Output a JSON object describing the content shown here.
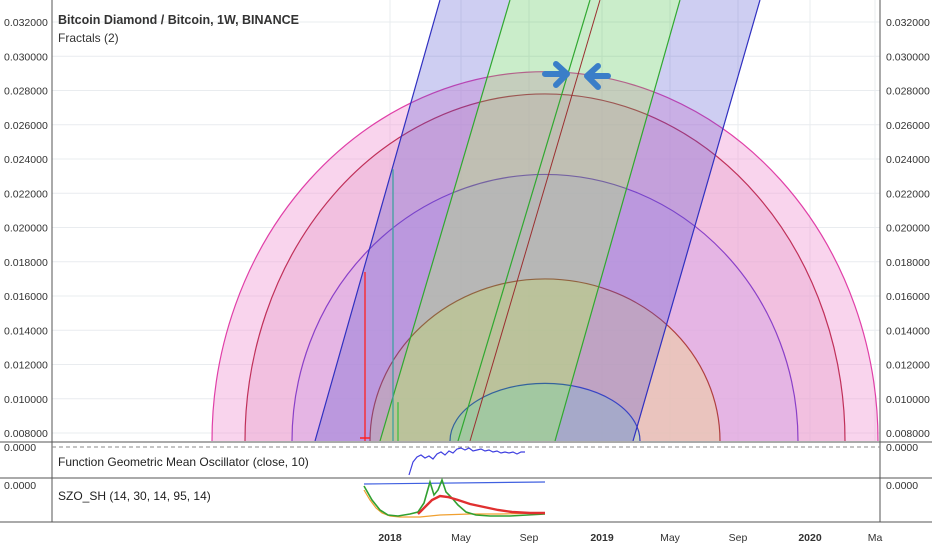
{
  "header": {
    "symbol_title": "Bitcoin Diamond / Bitcoin, 1W, BINANCE",
    "study_label": "Fractals (2)"
  },
  "panes": {
    "oscillator1_label": "Function Geometric Mean Oscillator (close, 10)",
    "oscillator2_label": "SZO_SH (14, 30, 14, 95, 14)",
    "oscillator1_scale_label": "0.0000",
    "oscillator2_scale_label": "0.0000"
  },
  "colors": {
    "background": "#ffffff",
    "grid": "#e9ecef",
    "arc_pink": "#e040a8",
    "arc_crimson": "#c0305a",
    "arc_purple": "#8a40c8",
    "arc_brown": "#b04040",
    "arc_blue": "#3040c0",
    "channel_blue": "#3030c0",
    "channel_green": "#30a830",
    "center_line": "#9a3030",
    "arrow": "#3a7ec8",
    "price_red": "#ff2020",
    "price_teal": "#40a0a0",
    "osc_blue": "#4040e0",
    "osc_green": "#30a030",
    "osc_red": "#e03030",
    "osc_orange": "#f0a030"
  },
  "chart_data": {
    "type": "line",
    "title": "Bitcoin Diamond / Bitcoin, 1W, BINANCE",
    "x_axis": {
      "tick_labels": [
        "2018",
        "May",
        "Sep",
        "2019",
        "May",
        "Sep",
        "2020",
        "Ma"
      ],
      "bold_labels": [
        "2018",
        "2019",
        "2020"
      ]
    },
    "y_axis": {
      "scale": "linear",
      "ylim": [
        0.0074,
        0.033
      ],
      "ticks": [
        0.008,
        0.01,
        0.012,
        0.014,
        0.016,
        0.018,
        0.02,
        0.022,
        0.024,
        0.026,
        0.028,
        0.03,
        0.032
      ],
      "tick_labels": [
        "0.008000",
        "0.010000",
        "0.012000",
        "0.014000",
        "0.016000",
        "0.018000",
        "0.020000",
        "0.022000",
        "0.024000",
        "0.026000",
        "0.028000",
        "0.030000",
        "0.032000"
      ],
      "both_sides": true
    },
    "grid": true,
    "fib_speed_arcs": {
      "center_x": 545,
      "tops": [
        0.0291,
        0.0278,
        0.0231,
        0.017,
        0.0109
      ],
      "horizontal_half_widths": [
        333,
        300,
        253,
        175,
        95
      ],
      "arc_colors": [
        "#e040a8",
        "#c0305a",
        "#8a40c8",
        "#b04040",
        "#3040c0"
      ],
      "fills": [
        "#f2a0d8",
        "#e8a8d0",
        "#d4a8e8",
        "#f0d890",
        "#a0d8d0"
      ]
    },
    "channel": {
      "lines_at_axis": [
        315,
        380,
        458,
        555,
        633
      ],
      "lines_at_top": [
        440,
        510,
        590,
        680,
        760
      ],
      "center_at_axis": 470,
      "center_at_top": 600
    },
    "price_spikes": [
      {
        "x": 365,
        "low": 0.0075,
        "high": 0.0174,
        "color": "#ff2020"
      },
      {
        "x": 393,
        "low": 0.0075,
        "high": 0.0234,
        "color": "#40a0a0"
      },
      {
        "x": 398,
        "low": 0.0075,
        "high": 0.0098,
        "color": "#40c040"
      }
    ],
    "arrows": [
      "right",
      "left"
    ]
  }
}
